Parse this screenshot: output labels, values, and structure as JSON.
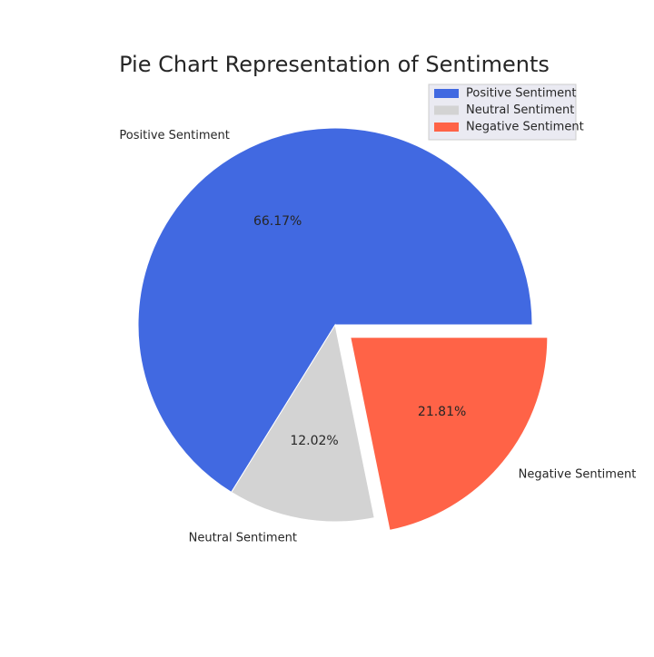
{
  "chart_data": {
    "type": "pie",
    "title": "Pie Chart Representation of Sentiments",
    "slices": [
      {
        "label": "Positive Sentiment",
        "value": 66.17,
        "pct_label": "66.17%",
        "color": "#4169E1",
        "explode": 0
      },
      {
        "label": "Neutral Sentiment",
        "value": 12.02,
        "pct_label": "12.02%",
        "color": "#D3D3D3",
        "explode": 0
      },
      {
        "label": "Negative Sentiment",
        "value": 21.81,
        "pct_label": "21.81%",
        "color": "#FF6347",
        "explode": 0.1
      }
    ],
    "start_angle_deg": 0,
    "direction": "counterclockwise",
    "legend_position": "top-right"
  }
}
